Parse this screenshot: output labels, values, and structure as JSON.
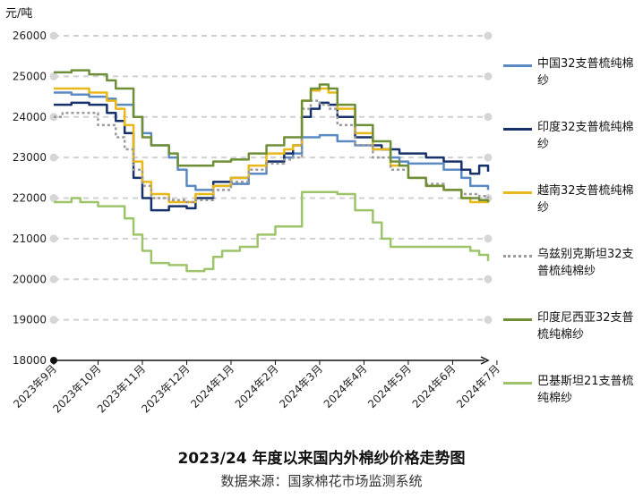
{
  "chart_data": {
    "type": "line",
    "title": "2023/24 年度以来国内外棉纱价格走势图",
    "source": "数据来源：国家棉花市场监测系统",
    "ylabel": "元/吨",
    "ylim": [
      18000,
      26000
    ],
    "yticks": [
      18000,
      19000,
      20000,
      21000,
      22000,
      23000,
      24000,
      25000,
      26000
    ],
    "xlim": [
      0,
      49
    ],
    "categories": [
      "2023年9月",
      "2023年10月",
      "2023年11月",
      "2023年12月",
      "2024年1月",
      "2024年2月",
      "2024年3月",
      "2024年4月",
      "2024年5月",
      "2024年6月",
      "2024年7月"
    ],
    "category_positions": [
      0,
      5,
      10,
      15,
      20,
      25,
      30,
      35,
      40,
      45,
      50
    ],
    "grid": true,
    "legend": "right",
    "series": [
      {
        "name": "中国32支普梳纯棉纱",
        "color": "#5b8ac2",
        "dash": "",
        "width": 2.5,
        "points": [
          [
            0,
            24600
          ],
          [
            2,
            24550
          ],
          [
            4,
            24500
          ],
          [
            6,
            24450
          ],
          [
            7,
            24300
          ],
          [
            9,
            24000
          ],
          [
            10,
            23600
          ],
          [
            11,
            23300
          ],
          [
            13,
            23000
          ],
          [
            14,
            22700
          ],
          [
            15,
            22300
          ],
          [
            16,
            22200
          ],
          [
            18,
            22300
          ],
          [
            20,
            22350
          ],
          [
            22,
            22600
          ],
          [
            24,
            22900
          ],
          [
            26,
            23000
          ],
          [
            27,
            23100
          ],
          [
            28,
            23500
          ],
          [
            30,
            23550
          ],
          [
            32,
            23400
          ],
          [
            34,
            23300
          ],
          [
            36,
            23200
          ],
          [
            38,
            23000
          ],
          [
            39,
            22900
          ],
          [
            40,
            22850
          ],
          [
            42,
            22850
          ],
          [
            44,
            22700
          ],
          [
            46,
            22500
          ],
          [
            47,
            22300
          ],
          [
            49,
            22200
          ]
        ]
      },
      {
        "name": "印度32支普梳纯棉纱",
        "color": "#17316b",
        "dash": "",
        "width": 2.5,
        "points": [
          [
            0,
            24300
          ],
          [
            2,
            24350
          ],
          [
            4,
            24300
          ],
          [
            6,
            24100
          ],
          [
            7,
            23900
          ],
          [
            8,
            23600
          ],
          [
            9,
            22500
          ],
          [
            10,
            22000
          ],
          [
            11,
            21700
          ],
          [
            13,
            21800
          ],
          [
            15,
            21750
          ],
          [
            16,
            22000
          ],
          [
            18,
            22400
          ],
          [
            20,
            22500
          ],
          [
            22,
            22800
          ],
          [
            24,
            22900
          ],
          [
            26,
            23100
          ],
          [
            27,
            23300
          ],
          [
            28,
            24000
          ],
          [
            29,
            24200
          ],
          [
            30,
            24350
          ],
          [
            31,
            24300
          ],
          [
            32,
            24000
          ],
          [
            34,
            23500
          ],
          [
            36,
            23300
          ],
          [
            37,
            23200
          ],
          [
            38,
            23200
          ],
          [
            39,
            23100
          ],
          [
            40,
            23100
          ],
          [
            42,
            23000
          ],
          [
            44,
            22900
          ],
          [
            46,
            22700
          ],
          [
            47,
            22600
          ],
          [
            48,
            22800
          ],
          [
            49,
            22650
          ]
        ]
      },
      {
        "name": "越南32支普梳纯棉纱",
        "color": "#e8b818",
        "dash": "",
        "width": 2.5,
        "points": [
          [
            0,
            24700
          ],
          [
            2,
            24700
          ],
          [
            4,
            24600
          ],
          [
            6,
            24400
          ],
          [
            7,
            24200
          ],
          [
            8,
            23800
          ],
          [
            9,
            22900
          ],
          [
            10,
            22400
          ],
          [
            11,
            22100
          ],
          [
            13,
            21900
          ],
          [
            15,
            21900
          ],
          [
            16,
            22100
          ],
          [
            18,
            22300
          ],
          [
            20,
            22500
          ],
          [
            22,
            22800
          ],
          [
            24,
            23100
          ],
          [
            26,
            23200
          ],
          [
            27,
            23300
          ],
          [
            28,
            24400
          ],
          [
            29,
            24650
          ],
          [
            30,
            24700
          ],
          [
            31,
            24600
          ],
          [
            32,
            24200
          ],
          [
            34,
            23600
          ],
          [
            36,
            23200
          ],
          [
            38,
            22800
          ],
          [
            40,
            22500
          ],
          [
            42,
            22300
          ],
          [
            44,
            22200
          ],
          [
            46,
            22000
          ],
          [
            47,
            21900
          ],
          [
            49,
            21950
          ]
        ]
      },
      {
        "name": "乌兹别克斯坦32支普梳纯棉纱",
        "color": "#9a9a9a",
        "dash": "3,3",
        "width": 2.5,
        "points": [
          [
            0,
            24000
          ],
          [
            1,
            24100
          ],
          [
            3,
            24100
          ],
          [
            5,
            23800
          ],
          [
            7,
            23500
          ],
          [
            8,
            23200
          ],
          [
            9,
            22700
          ],
          [
            10,
            22300
          ],
          [
            11,
            22000
          ],
          [
            13,
            21950
          ],
          [
            15,
            21900
          ],
          [
            16,
            21950
          ],
          [
            18,
            22200
          ],
          [
            20,
            22400
          ],
          [
            22,
            22700
          ],
          [
            24,
            22850
          ],
          [
            26,
            22950
          ],
          [
            27,
            23000
          ],
          [
            28,
            24200
          ],
          [
            29,
            24400
          ],
          [
            30,
            24300
          ],
          [
            31,
            24200
          ],
          [
            32,
            23800
          ],
          [
            34,
            23300
          ],
          [
            36,
            23000
          ],
          [
            38,
            22700
          ],
          [
            40,
            22500
          ],
          [
            42,
            22350
          ],
          [
            44,
            22200
          ],
          [
            46,
            22100
          ],
          [
            48,
            22050
          ],
          [
            49,
            22000
          ]
        ]
      },
      {
        "name": "印度尼西亚32支普梳纯棉纱",
        "color": "#6e8f38",
        "dash": "",
        "width": 2.5,
        "points": [
          [
            0,
            25100
          ],
          [
            2,
            25150
          ],
          [
            4,
            25050
          ],
          [
            6,
            24900
          ],
          [
            7,
            24700
          ],
          [
            9,
            24000
          ],
          [
            10,
            23500
          ],
          [
            11,
            23300
          ],
          [
            13,
            23100
          ],
          [
            14,
            22800
          ],
          [
            16,
            22800
          ],
          [
            18,
            22900
          ],
          [
            20,
            22950
          ],
          [
            22,
            23100
          ],
          [
            24,
            23300
          ],
          [
            26,
            23500
          ],
          [
            27,
            23500
          ],
          [
            28,
            24400
          ],
          [
            29,
            24700
          ],
          [
            30,
            24800
          ],
          [
            31,
            24700
          ],
          [
            32,
            24300
          ],
          [
            34,
            23800
          ],
          [
            36,
            23400
          ],
          [
            38,
            22900
          ],
          [
            39,
            22800
          ],
          [
            40,
            22500
          ],
          [
            42,
            22300
          ],
          [
            44,
            22200
          ],
          [
            46,
            22000
          ],
          [
            48,
            21950
          ],
          [
            49,
            21900
          ]
        ]
      },
      {
        "name": "巴基斯坦21支普梳纯棉纱",
        "color": "#9dc46a",
        "dash": "",
        "width": 2.5,
        "points": [
          [
            0,
            21900
          ],
          [
            2,
            22000
          ],
          [
            3,
            21900
          ],
          [
            5,
            21800
          ],
          [
            7,
            21800
          ],
          [
            8,
            21500
          ],
          [
            9,
            21100
          ],
          [
            10,
            20700
          ],
          [
            11,
            20400
          ],
          [
            13,
            20350
          ],
          [
            15,
            20200
          ],
          [
            17,
            20250
          ],
          [
            18,
            20550
          ],
          [
            19,
            20700
          ],
          [
            21,
            20800
          ],
          [
            23,
            21100
          ],
          [
            25,
            21300
          ],
          [
            27,
            21300
          ],
          [
            28,
            22150
          ],
          [
            30,
            22150
          ],
          [
            32,
            22100
          ],
          [
            34,
            21700
          ],
          [
            36,
            21400
          ],
          [
            37,
            21000
          ],
          [
            38,
            20800
          ],
          [
            40,
            20800
          ],
          [
            42,
            20800
          ],
          [
            44,
            20800
          ],
          [
            46,
            20800
          ],
          [
            47,
            20700
          ],
          [
            48,
            20600
          ],
          [
            49,
            20450
          ]
        ]
      }
    ]
  }
}
